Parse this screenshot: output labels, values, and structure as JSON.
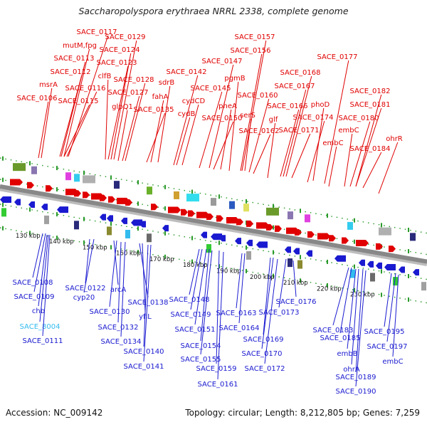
{
  "title": "Saccharopolyspora erythraea NRRL 2338, complete genome",
  "accession": "Accession: NC_009142",
  "topology": "Topology: circular; Length: 8,212,805 bp; Genes: 7,259",
  "colors": {
    "plus_strand_label": "#e00000",
    "minus_strand_label": "#1a1ad0",
    "highlight_label": "#33bbee",
    "backbone": "#888888"
  },
  "ticks": [
    "130 kbp",
    "140 kbp",
    "150 kbp",
    "160 kbp",
    "170 kbp",
    "180 kbp",
    "190 kbp",
    "200 kbp",
    "210 kbp",
    "220 kbp",
    "230 kbp"
  ],
  "top_labels": [
    "SACE_0117",
    "mutM,fpg",
    "SACE_0113",
    "SACE_0112",
    "msrA",
    "SACE_0106",
    "SACE_0116",
    "SACE_0115",
    "SACE_0129",
    "SACE_0124",
    "SACE_0123",
    "clfB",
    "SACE_0128",
    "SACE_0127",
    "glpQ1",
    "sdrB",
    "fahA",
    "SACE_0135",
    "SACE_0142",
    "cydB",
    "cydCD",
    "SACE_0147",
    "SACE_0145",
    "SACE_0157",
    "SACE_0156",
    "pgmB",
    "SACE_0150",
    "pheA",
    "SACE_0160",
    "serS",
    "SACE_0162",
    "SACE_0168",
    "SACE_0167",
    "SACE_0166",
    "glf",
    "SACE_0171",
    "phoD",
    "SACE_0174",
    "SACE_0177",
    "SACE_0182",
    "SACE_0181",
    "SACE_0180",
    "embC",
    "embC",
    "SACE_0184",
    "ohrR"
  ],
  "bottom_labels": [
    "SACE_0108",
    "SACE_0109",
    "chb",
    "SACE_8004",
    "SACE_0111",
    "SACE_0122",
    "cyp20",
    "arcA",
    "SACE_0130",
    "SACE_0132",
    "SACE_0134",
    "SACE_0138",
    "yfiL",
    "SACE_0140",
    "SACE_0141",
    "SACE_0148",
    "SACE_0149",
    "SACE_0151",
    "SACE_0154",
    "SACE_0155",
    "SACE_0159",
    "SACE_0161",
    "SACE_0163",
    "SACE_0164",
    "SACE_0169",
    "SACE_0170",
    "SACE_0172",
    "SACE_0173",
    "SACE_0176",
    "SACE_0183",
    "SACE_0185",
    "embB",
    "ohrA",
    "SACE_0189",
    "SACE_0190",
    "SACE_0195",
    "SACE_0197",
    "embC"
  ]
}
